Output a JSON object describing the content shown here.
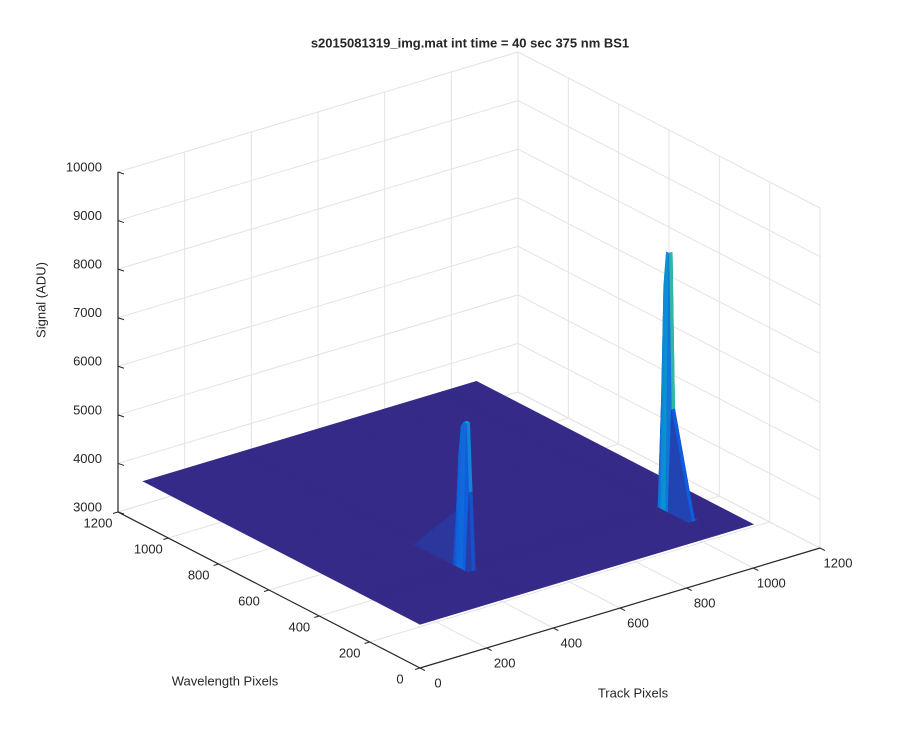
{
  "chart_data": {
    "type": "surface",
    "title": "s2015081319_img.mat int time = 40 sec  375 nm BS1",
    "xlabel": "Track Pixels",
    "ylabel": "Wavelength Pixels",
    "zlabel": "Signal (ADU)",
    "colormap": "parula",
    "grid": true,
    "xlim": [
      0,
      1200
    ],
    "ylim": [
      0,
      1200
    ],
    "zlim": [
      3000,
      10000
    ],
    "xticks": [
      0,
      200,
      400,
      600,
      800,
      1000,
      1200
    ],
    "yticks": [
      0,
      200,
      400,
      600,
      800,
      1000,
      1200
    ],
    "zticks": [
      3000,
      4000,
      5000,
      6000,
      7000,
      8000,
      9000,
      10000
    ],
    "x": [
      0,
      150,
      280,
      290,
      300,
      310,
      450,
      600,
      750,
      880,
      890,
      900,
      910,
      1000
    ],
    "y": [
      0,
      100,
      180,
      190,
      200,
      210,
      220,
      230,
      240,
      400,
      600,
      800,
      1000,
      1100
    ],
    "z": [
      [
        3900,
        3900,
        3900,
        3900,
        3900,
        3900,
        3900,
        3900,
        3900,
        3900,
        3900,
        3900,
        3900,
        3900
      ],
      [
        3900,
        3900,
        3900,
        3900,
        3900,
        3900,
        3900,
        3900,
        3900,
        3900,
        3900,
        3900,
        3900,
        3900
      ],
      [
        3900,
        3900,
        3900,
        3900,
        3900,
        3900,
        3900,
        3900,
        3900,
        3900,
        6000,
        6000,
        3900,
        3900
      ],
      [
        3900,
        3900,
        3900,
        5500,
        5500,
        3900,
        3900,
        3900,
        3900,
        3900,
        9200,
        9200,
        3900,
        3900
      ],
      [
        3900,
        3900,
        3900,
        6900,
        6900,
        3900,
        3900,
        3900,
        3900,
        3900,
        9200,
        9000,
        3900,
        3900
      ],
      [
        3900,
        3900,
        3900,
        6900,
        6900,
        3900,
        3900,
        3900,
        3900,
        3900,
        8500,
        8500,
        3900,
        3900
      ],
      [
        3900,
        3900,
        3900,
        6800,
        6800,
        3900,
        3900,
        3900,
        3900,
        3900,
        6000,
        6000,
        3900,
        3900
      ],
      [
        3900,
        3900,
        3900,
        6200,
        6200,
        3900,
        3900,
        3900,
        3900,
        3900,
        3900,
        3900,
        3900,
        3900
      ],
      [
        3900,
        3900,
        3900,
        5000,
        5000,
        3900,
        3900,
        3900,
        3900,
        3900,
        3900,
        3900,
        3900,
        3900
      ],
      [
        3900,
        3900,
        3900,
        3900,
        3900,
        3900,
        3900,
        3900,
        3900,
        3900,
        3900,
        3900,
        3900,
        3900
      ],
      [
        3900,
        3900,
        3900,
        3900,
        3900,
        3900,
        3900,
        3900,
        3900,
        3900,
        3900,
        3900,
        3900,
        3900
      ],
      [
        3900,
        3900,
        3900,
        3900,
        3900,
        3900,
        3900,
        3900,
        3900,
        3900,
        3900,
        3900,
        3900,
        3900
      ],
      [
        3900,
        3900,
        3900,
        3900,
        3900,
        3900,
        3900,
        3900,
        3900,
        3900,
        3900,
        3900,
        3900,
        3900
      ],
      [
        3900,
        3900,
        3900,
        3900,
        3900,
        3900,
        3900,
        3900,
        3900,
        3900,
        3900,
        3900,
        3900,
        3900
      ]
    ]
  }
}
